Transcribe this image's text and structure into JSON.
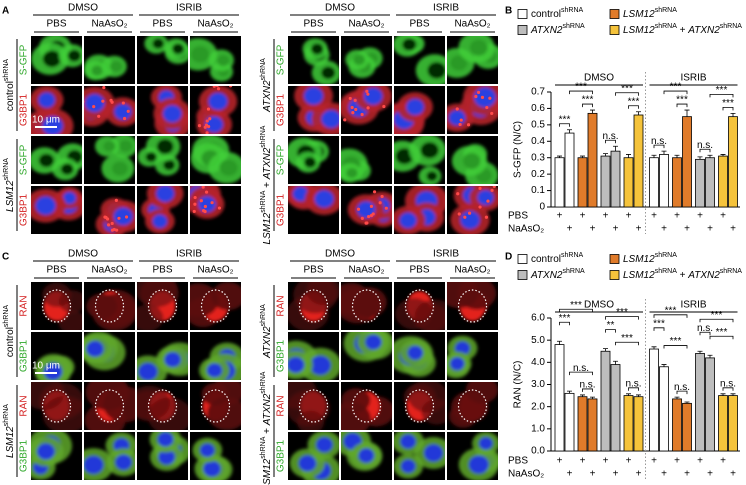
{
  "panels": [
    {
      "letter": "A",
      "groups": [
        "DMSO",
        "ISRIB"
      ],
      "columns": [
        "PBS",
        "NaAsO₂"
      ],
      "channels": [
        "S-GFP",
        "G3BP1"
      ],
      "genotypes": [
        [
          {
            "text": "control"
          },
          {
            "text": "shRNA",
            "sup": true
          }
        ],
        [
          {
            "text": "LSM12",
            "italic": true
          },
          {
            "text": "shRNA",
            "sup": true
          }
        ],
        [
          {
            "text": "ATXN2",
            "italic": true
          },
          {
            "text": "shRNA",
            "sup": true
          }
        ],
        [
          {
            "text": "LSM12",
            "italic": true
          },
          {
            "text": "shRNA",
            "sup": true
          },
          {
            "text": " + "
          },
          {
            "text": "ATXN2",
            "italic": true
          },
          {
            "text": "shRNA",
            "sup": true
          }
        ]
      ],
      "scale_bar": "10 μm"
    },
    {
      "letter": "C",
      "groups": [
        "DMSO",
        "ISRIB"
      ],
      "columns": [
        "PBS",
        "NaAsO₂"
      ],
      "channels": [
        "RAN",
        "G3BP1"
      ],
      "genotypes": [
        [
          {
            "text": "control"
          },
          {
            "text": "shRNA",
            "sup": true
          }
        ],
        [
          {
            "text": "LSM12",
            "italic": true
          },
          {
            "text": "shRNA",
            "sup": true
          }
        ],
        [
          {
            "text": "ATXN2",
            "italic": true
          },
          {
            "text": "shRNA",
            "sup": true
          }
        ],
        [
          {
            "text": "LSM12",
            "italic": true
          },
          {
            "text": "shRNA",
            "sup": true
          },
          {
            "text": " + "
          },
          {
            "text": "ATXN2",
            "italic": true
          },
          {
            "text": "shRNA",
            "sup": true
          }
        ]
      ],
      "scale_bar": "10 μm"
    }
  ],
  "chart_data": [
    {
      "type": "bar",
      "letter": "B",
      "ylabel": "S-GFP (N/C)",
      "groups": [
        "DMSO",
        "ISRIB"
      ],
      "treatments": [
        {
          "label": "PBS",
          "mark": "+"
        },
        {
          "label": "NaAsO₂",
          "mark": "+"
        }
      ],
      "ylim": [
        0,
        0.7
      ],
      "yticks": [
        0,
        0.1,
        0.2,
        0.3,
        0.4,
        0.5,
        0.6,
        0.7
      ],
      "series": [
        {
          "name": [
            {
              "text": "control"
            },
            {
              "text": "shRNA",
              "sup": true
            }
          ],
          "color": "#ffffff",
          "values": [
            0.3,
            0.45,
            0.3,
            0.32
          ],
          "errors": [
            0.01,
            0.02,
            0.015,
            0.02
          ]
        },
        {
          "name": [
            {
              "text": "LSM12",
              "italic": true
            },
            {
              "text": "shRNA",
              "sup": true
            }
          ],
          "color": "#e07b2a",
          "values": [
            0.3,
            0.57,
            0.3,
            0.55
          ],
          "errors": [
            0.01,
            0.02,
            0.015,
            0.04
          ]
        },
        {
          "name": [
            {
              "text": "ATXN2",
              "italic": true
            },
            {
              "text": "shRNA",
              "sup": true
            }
          ],
          "color": "#bdbdbd",
          "values": [
            0.31,
            0.34,
            0.29,
            0.3
          ],
          "errors": [
            0.015,
            0.03,
            0.015,
            0.015
          ]
        },
        {
          "name": [
            {
              "text": "LSM12",
              "italic": true
            },
            {
              "text": "shRNA",
              "sup": true
            },
            {
              "text": " + "
            },
            {
              "text": "ATXN2",
              "italic": true
            },
            {
              "text": "shRNA",
              "sup": true
            }
          ],
          "color": "#f5c33b",
          "values": [
            0.3,
            0.56,
            0.31,
            0.55
          ],
          "errors": [
            0.02,
            0.02,
            0.01,
            0.02
          ]
        }
      ],
      "annotations": [
        [
          "***",
          "***",
          "***",
          "n.s.",
          "***",
          "***"
        ],
        [
          "n.s.",
          "***",
          "***",
          "n.s.",
          "***",
          "***"
        ]
      ]
    },
    {
      "type": "bar",
      "letter": "D",
      "ylabel": "RAN (N/C)",
      "groups": [
        "DMSO",
        "ISRIB"
      ],
      "treatments": [
        {
          "label": "PBS",
          "mark": "+"
        },
        {
          "label": "NaAsO₂",
          "mark": "+"
        }
      ],
      "ylim": [
        0,
        6
      ],
      "yticks": [
        {
          "value": 0,
          "label": "0.0"
        },
        {
          "value": 1,
          "label": "1.0"
        },
        {
          "value": 2,
          "label": "2.0"
        },
        {
          "value": 3,
          "label": "3.0"
        },
        {
          "value": 4,
          "label": "4.0"
        },
        {
          "value": 5,
          "label": "5.0"
        },
        {
          "value": 6,
          "label": "6.0"
        }
      ],
      "series": [
        {
          "name": [
            {
              "text": "control"
            },
            {
              "text": "shRNA",
              "sup": true
            }
          ],
          "color": "#ffffff",
          "values": [
            4.8,
            2.6,
            4.6,
            3.8
          ],
          "errors": [
            0.15,
            0.1,
            0.1,
            0.1
          ]
        },
        {
          "name": [
            {
              "text": "LSM12",
              "italic": true
            },
            {
              "text": "shRNA",
              "sup": true
            }
          ],
          "color": "#e07b2a",
          "values": [
            2.45,
            2.35,
            2.35,
            2.15
          ],
          "errors": [
            0.08,
            0.08,
            0.08,
            0.06
          ]
        },
        {
          "name": [
            {
              "text": "ATXN2",
              "italic": true
            },
            {
              "text": "shRNA",
              "sup": true
            }
          ],
          "color": "#bdbdbd",
          "values": [
            4.5,
            3.9,
            4.4,
            4.2
          ],
          "errors": [
            0.12,
            0.15,
            0.1,
            0.12
          ]
        },
        {
          "name": [
            {
              "text": "LSM12",
              "italic": true
            },
            {
              "text": "shRNA",
              "sup": true
            },
            {
              "text": " + "
            },
            {
              "text": "ATXN2",
              "italic": true
            },
            {
              "text": "shRNA",
              "sup": true
            }
          ],
          "color": "#f5c33b",
          "values": [
            2.5,
            2.45,
            2.5,
            2.5
          ],
          "errors": [
            0.08,
            0.08,
            0.08,
            0.08
          ]
        }
      ],
      "annotations": [
        [
          "***",
          "***",
          "n.s.",
          "n.s.",
          "***",
          "**",
          "***",
          "n.s."
        ],
        [
          "***",
          "***",
          "***",
          "n.s.",
          "***",
          "n.s.",
          "***",
          "n.s."
        ]
      ]
    }
  ]
}
